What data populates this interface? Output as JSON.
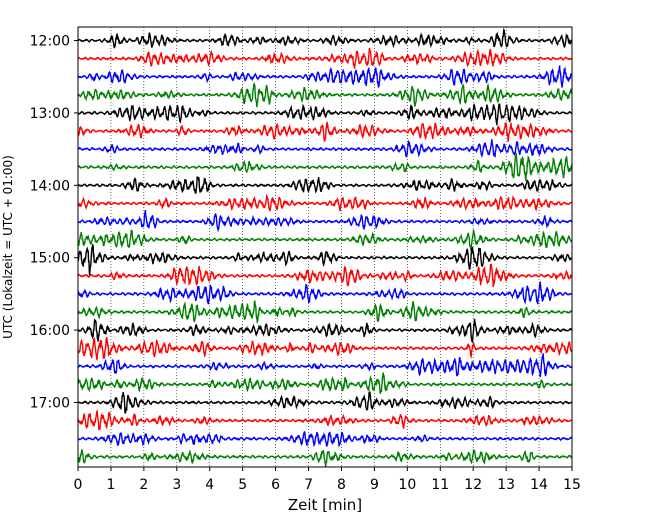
{
  "chart_data": {
    "type": "line",
    "title": "",
    "xlabel": "Zeit  [min]",
    "ylabel": "UTC (Lokalzeit = UTC + 01:00)",
    "xlim": [
      0,
      15
    ],
    "xticks": [
      "0",
      "1",
      "2",
      "3",
      "4",
      "5",
      "6",
      "7",
      "8",
      "9",
      "10",
      "11",
      "12",
      "13",
      "14",
      "15"
    ],
    "yticks": [
      "12:00",
      "13:00",
      "14:00",
      "15:00",
      "16:00",
      "17:00"
    ],
    "trace_interval_min": 15,
    "trace_count": 24,
    "grid": "vertical dotted at each minute",
    "colors": [
      "#000000",
      "#ff0000",
      "#0000ff",
      "#008000"
    ],
    "trace_start_times": [
      "12:00",
      "12:15",
      "12:30",
      "12:45",
      "13:00",
      "13:15",
      "13:30",
      "13:45",
      "14:00",
      "14:15",
      "14:30",
      "14:45",
      "15:00",
      "15:15",
      "15:30",
      "15:45",
      "16:00",
      "16:15",
      "16:30",
      "16:45",
      "17:00",
      "17:15",
      "17:30",
      "17:45"
    ]
  }
}
